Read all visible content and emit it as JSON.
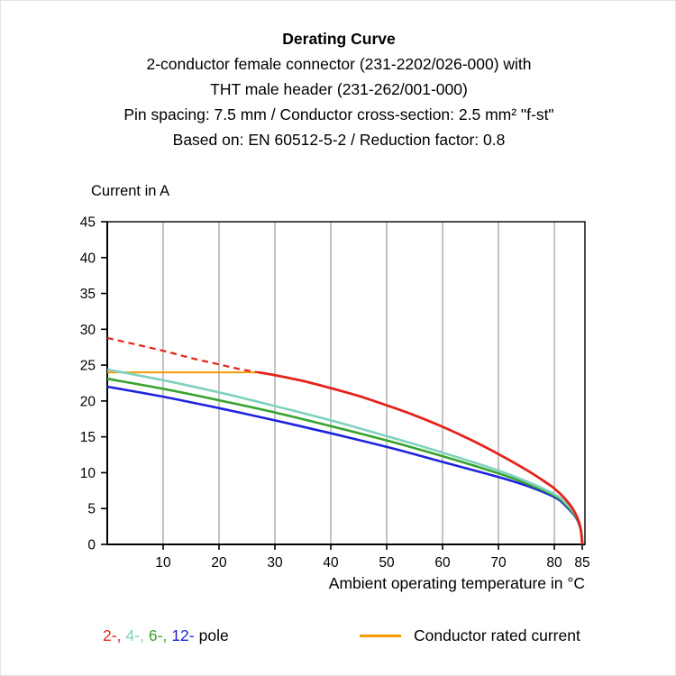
{
  "header": {
    "title": "Derating Curve",
    "lines": [
      "2-conductor female connector (231-2202/026-000) with",
      "THT male header (231-262/001-000)",
      "Pin spacing: 7.5 mm / Conductor cross-section: 2.5 mm² \"f-st\"",
      "Based on: EN 60512-5-2 / Reduction factor: 0.8"
    ]
  },
  "chart_data": {
    "type": "line",
    "title": "Derating Curve",
    "ylabel": "Current in A",
    "xlabel": "Ambient operating temperature in °C",
    "xlim": [
      0,
      85.5
    ],
    "ylim": [
      0,
      45
    ],
    "x_ticks": [
      10,
      20,
      30,
      40,
      50,
      60,
      70,
      80,
      85
    ],
    "y_ticks": [
      0,
      5,
      10,
      15,
      20,
      25,
      30,
      35,
      40,
      45
    ],
    "grid": "vertical-only",
    "legend_position": "bottom",
    "series": [
      {
        "key": "rated-current",
        "name": "Conductor rated current",
        "color": "#f59b00",
        "width": 2,
        "dash": false,
        "points": [
          [
            0,
            24
          ],
          [
            27.5,
            24
          ]
        ]
      },
      {
        "key": "pole-12",
        "name": "12-pole",
        "color": "#1e23dd",
        "width": 2.6,
        "dash": false,
        "points": [
          [
            0,
            22.0
          ],
          [
            10,
            20.6
          ],
          [
            20,
            19.0
          ],
          [
            30,
            17.3
          ],
          [
            40,
            15.5
          ],
          [
            50,
            13.6
          ],
          [
            60,
            11.5
          ],
          [
            70,
            9.4
          ],
          [
            75,
            8.2
          ],
          [
            80,
            6.6
          ],
          [
            82,
            5.4
          ],
          [
            84,
            3.6
          ],
          [
            84.8,
            1.8
          ],
          [
            85,
            0
          ]
        ]
      },
      {
        "key": "pole-6",
        "name": "6-pole",
        "color": "#36a22d",
        "width": 2.6,
        "dash": false,
        "points": [
          [
            0,
            23.1
          ],
          [
            10,
            21.7
          ],
          [
            20,
            20.1
          ],
          [
            30,
            18.4
          ],
          [
            40,
            16.5
          ],
          [
            50,
            14.5
          ],
          [
            60,
            12.3
          ],
          [
            70,
            9.9
          ],
          [
            75,
            8.5
          ],
          [
            80,
            6.8
          ],
          [
            82,
            5.6
          ],
          [
            84,
            3.7
          ],
          [
            84.8,
            1.9
          ],
          [
            85,
            0
          ]
        ]
      },
      {
        "key": "pole-4",
        "name": "4-pole",
        "color": "#7fd2bf",
        "width": 2.6,
        "dash": false,
        "points": [
          [
            0,
            24.4
          ],
          [
            10,
            22.9
          ],
          [
            20,
            21.2
          ],
          [
            30,
            19.3
          ],
          [
            40,
            17.3
          ],
          [
            50,
            15.1
          ],
          [
            60,
            12.8
          ],
          [
            70,
            10.3
          ],
          [
            75,
            8.8
          ],
          [
            80,
            7.0
          ],
          [
            82,
            5.8
          ],
          [
            84,
            3.9
          ],
          [
            84.8,
            2.0
          ],
          [
            85,
            0
          ]
        ]
      },
      {
        "key": "pole-2",
        "name": "2-pole",
        "color": "#e5231b",
        "width": 2.8,
        "dash": false,
        "points": [
          [
            27,
            24.0
          ],
          [
            30,
            23.6
          ],
          [
            35,
            22.8
          ],
          [
            40,
            21.8
          ],
          [
            45,
            20.7
          ],
          [
            50,
            19.4
          ],
          [
            55,
            18.0
          ],
          [
            60,
            16.4
          ],
          [
            65,
            14.6
          ],
          [
            70,
            12.6
          ],
          [
            75,
            10.4
          ],
          [
            78,
            8.9
          ],
          [
            80,
            7.8
          ],
          [
            82,
            6.3
          ],
          [
            83.5,
            4.7
          ],
          [
            84.6,
            2.6
          ],
          [
            85,
            0
          ]
        ]
      },
      {
        "key": "pole-2-dashed",
        "name": "2-pole extrapolation (dashed)",
        "color": "#e5231b",
        "width": 2.2,
        "dash": true,
        "points": [
          [
            0,
            28.8
          ],
          [
            5,
            27.9
          ],
          [
            10,
            27.0
          ],
          [
            15,
            26.0
          ],
          [
            20,
            25.1
          ],
          [
            24,
            24.4
          ],
          [
            27,
            24.0
          ]
        ]
      }
    ]
  },
  "legend": {
    "pole_segments": [
      {
        "text": "2-,",
        "color": "#e5231b"
      },
      {
        "text": "4-,",
        "color": "#7fd2bf"
      },
      {
        "text": "6-,",
        "color": "#36a22d"
      },
      {
        "text": "12-",
        "color": "#1e23dd"
      },
      {
        "text": "pole",
        "color": "#000000"
      }
    ],
    "rated_label": "Conductor rated current",
    "rated_color": "#f59b00"
  }
}
